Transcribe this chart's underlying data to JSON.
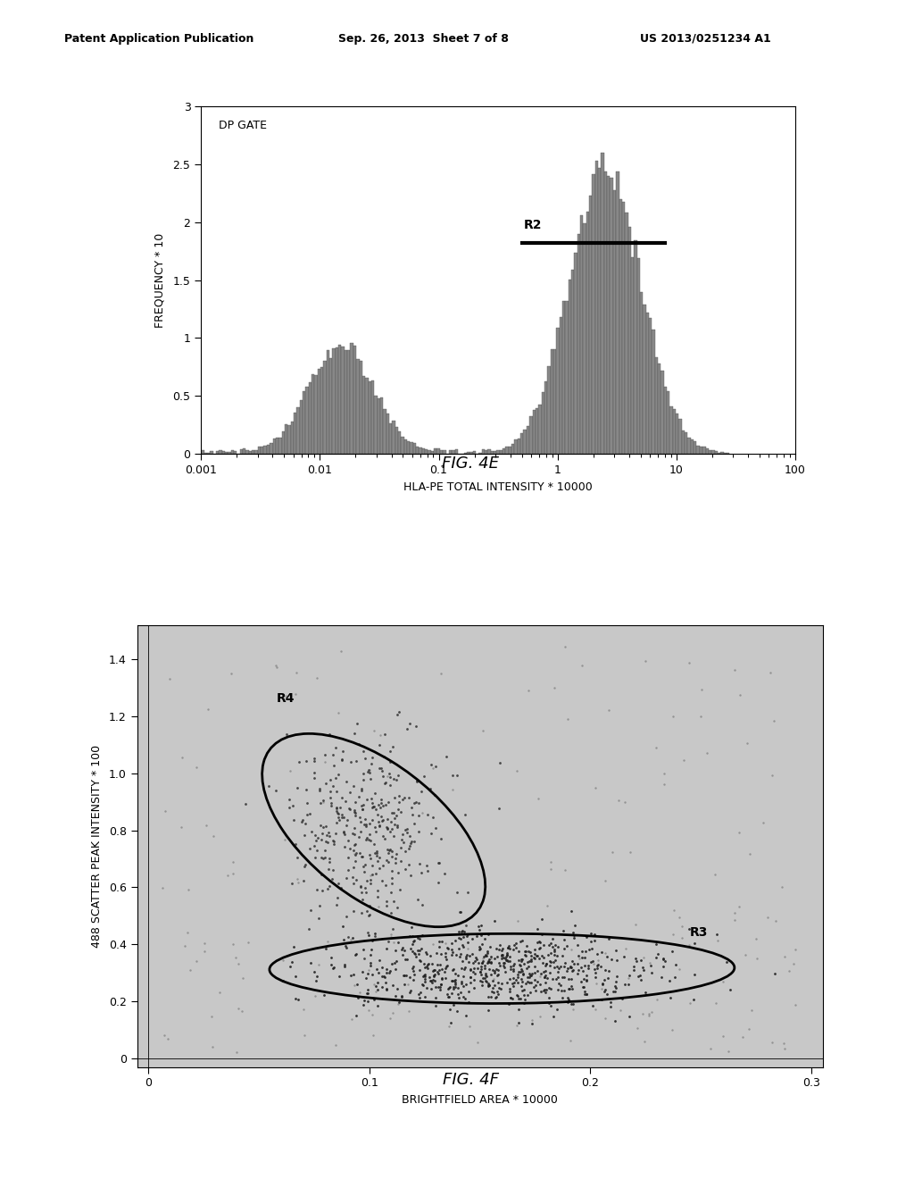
{
  "header_left": "Patent Application Publication",
  "header_mid": "Sep. 26, 2013  Sheet 7 of 8",
  "header_right": "US 2013/0251234 A1",
  "fig4e_title": "FIG. 4E",
  "fig4f_title": "FIG. 4F",
  "fig4e_inner_label": "DP GATE",
  "fig4e_ylabel": "FREQUENCY * 10",
  "fig4e_xlabel": "HLA-PE TOTAL INTENSITY * 10000",
  "fig4e_yticks": [
    0,
    0.5,
    1.0,
    1.5,
    2.0,
    2.5,
    3.0
  ],
  "fig4e_xtick_labels": [
    "0.001",
    "0.01",
    "0.1",
    "1",
    "10",
    "100"
  ],
  "fig4e_r2_label": "R2",
  "fig4f_ylabel": "488 SCATTER PEAK INTENSITY * 100",
  "fig4f_xlabel": "BRIGHTFIELD AREA * 10000",
  "fig4f_yticks": [
    0,
    0.2,
    0.4,
    0.6,
    0.8,
    1.0,
    1.2,
    1.4
  ],
  "fig4f_xtick_labels": [
    "0",
    "0.1",
    "0.2",
    "0.3"
  ],
  "fig4f_r3_label": "R3",
  "fig4f_r4_label": "R4",
  "bg_color": "#ffffff",
  "plot_bg_color_scatter": "#c8c8c8",
  "bar_color": "#888888",
  "bar_edge_color": "#444444"
}
